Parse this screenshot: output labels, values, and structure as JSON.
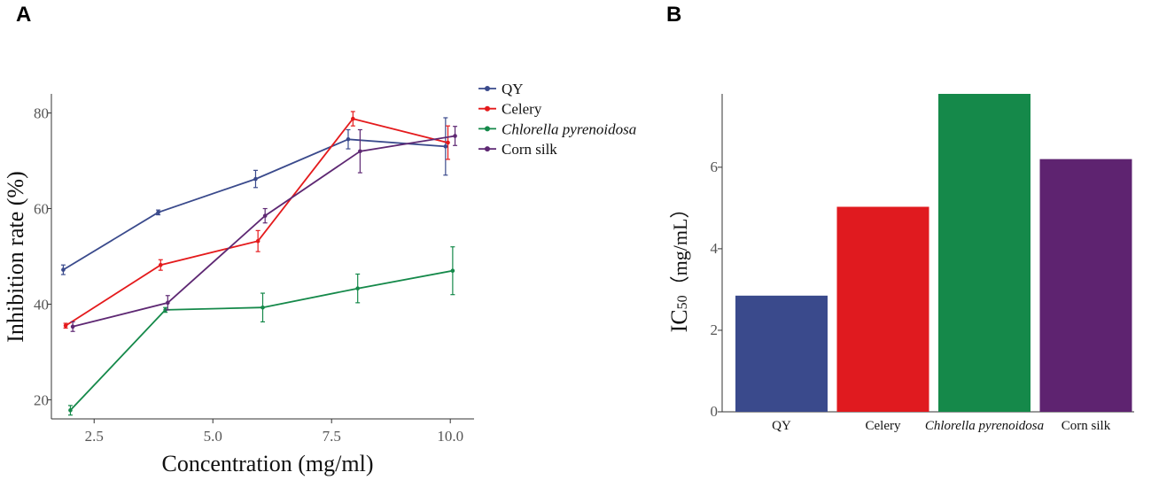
{
  "chart_data": [
    {
      "panel": "A",
      "type": "line",
      "xlabel": "Concentration (mg/ml)",
      "ylabel": "Inhibition rate (%)",
      "xlim": [
        1.6,
        10.5
      ],
      "ylim": [
        16,
        84
      ],
      "xticks": [
        2.5,
        5.0,
        7.5,
        10.0
      ],
      "xtick_labels": [
        "2.5",
        "5.0",
        "7.5",
        "10.0"
      ],
      "yticks": [
        20,
        40,
        60,
        80
      ],
      "ytick_labels": [
        "20",
        "40",
        "60",
        "80"
      ],
      "legend_position": "top-right",
      "series": [
        {
          "name": "QY",
          "color": "#3a4a8c",
          "italic": false,
          "x": [
            1.85,
            3.85,
            5.9,
            7.85,
            9.9
          ],
          "y": [
            47.2,
            59.2,
            66.2,
            74.5,
            73.0
          ],
          "err": [
            1.0,
            0.5,
            1.8,
            2.0,
            6.0
          ]
        },
        {
          "name": "Celery",
          "color": "#e41a1c",
          "italic": false,
          "x": [
            1.9,
            3.9,
            5.95,
            7.95,
            9.95
          ],
          "y": [
            35.5,
            48.2,
            53.2,
            78.8,
            73.8
          ],
          "err": [
            0.5,
            1.1,
            2.2,
            1.5,
            3.5
          ]
        },
        {
          "name": "Chlorella pyrenoidosa",
          "color": "#15894a",
          "italic": true,
          "x": [
            2.0,
            4.0,
            6.05,
            8.05,
            10.05
          ],
          "y": [
            17.8,
            38.8,
            39.3,
            43.3,
            47.0
          ],
          "err": [
            1.0,
            0.5,
            3.0,
            3.0,
            5.0
          ]
        },
        {
          "name": "Corn silk",
          "color": "#5e2873",
          "italic": false,
          "x": [
            2.05,
            4.05,
            6.1,
            8.1,
            10.1
          ],
          "y": [
            35.3,
            40.3,
            58.5,
            72.0,
            75.2
          ],
          "err": [
            1.0,
            1.5,
            1.5,
            4.5,
            2.0
          ]
        }
      ]
    },
    {
      "panel": "B",
      "type": "bar",
      "ylabel_main": "IC",
      "ylabel_sub": "50",
      "ylabel_units": "（mg/mL）",
      "ylim": [
        0,
        7.8
      ],
      "yticks": [
        0,
        2,
        4,
        6
      ],
      "ytick_labels": [
        "0",
        "2",
        "4",
        "6"
      ],
      "categories": [
        "QY",
        "Celery",
        "Chlorella pyrenoidosa",
        "Corn silk"
      ],
      "category_italic": [
        false,
        false,
        true,
        false
      ],
      "values": [
        2.85,
        5.03,
        7.8,
        6.2
      ],
      "colors": [
        "#3a4a8c",
        "#e01a1f",
        "#15894a",
        "#5e2370"
      ]
    }
  ]
}
